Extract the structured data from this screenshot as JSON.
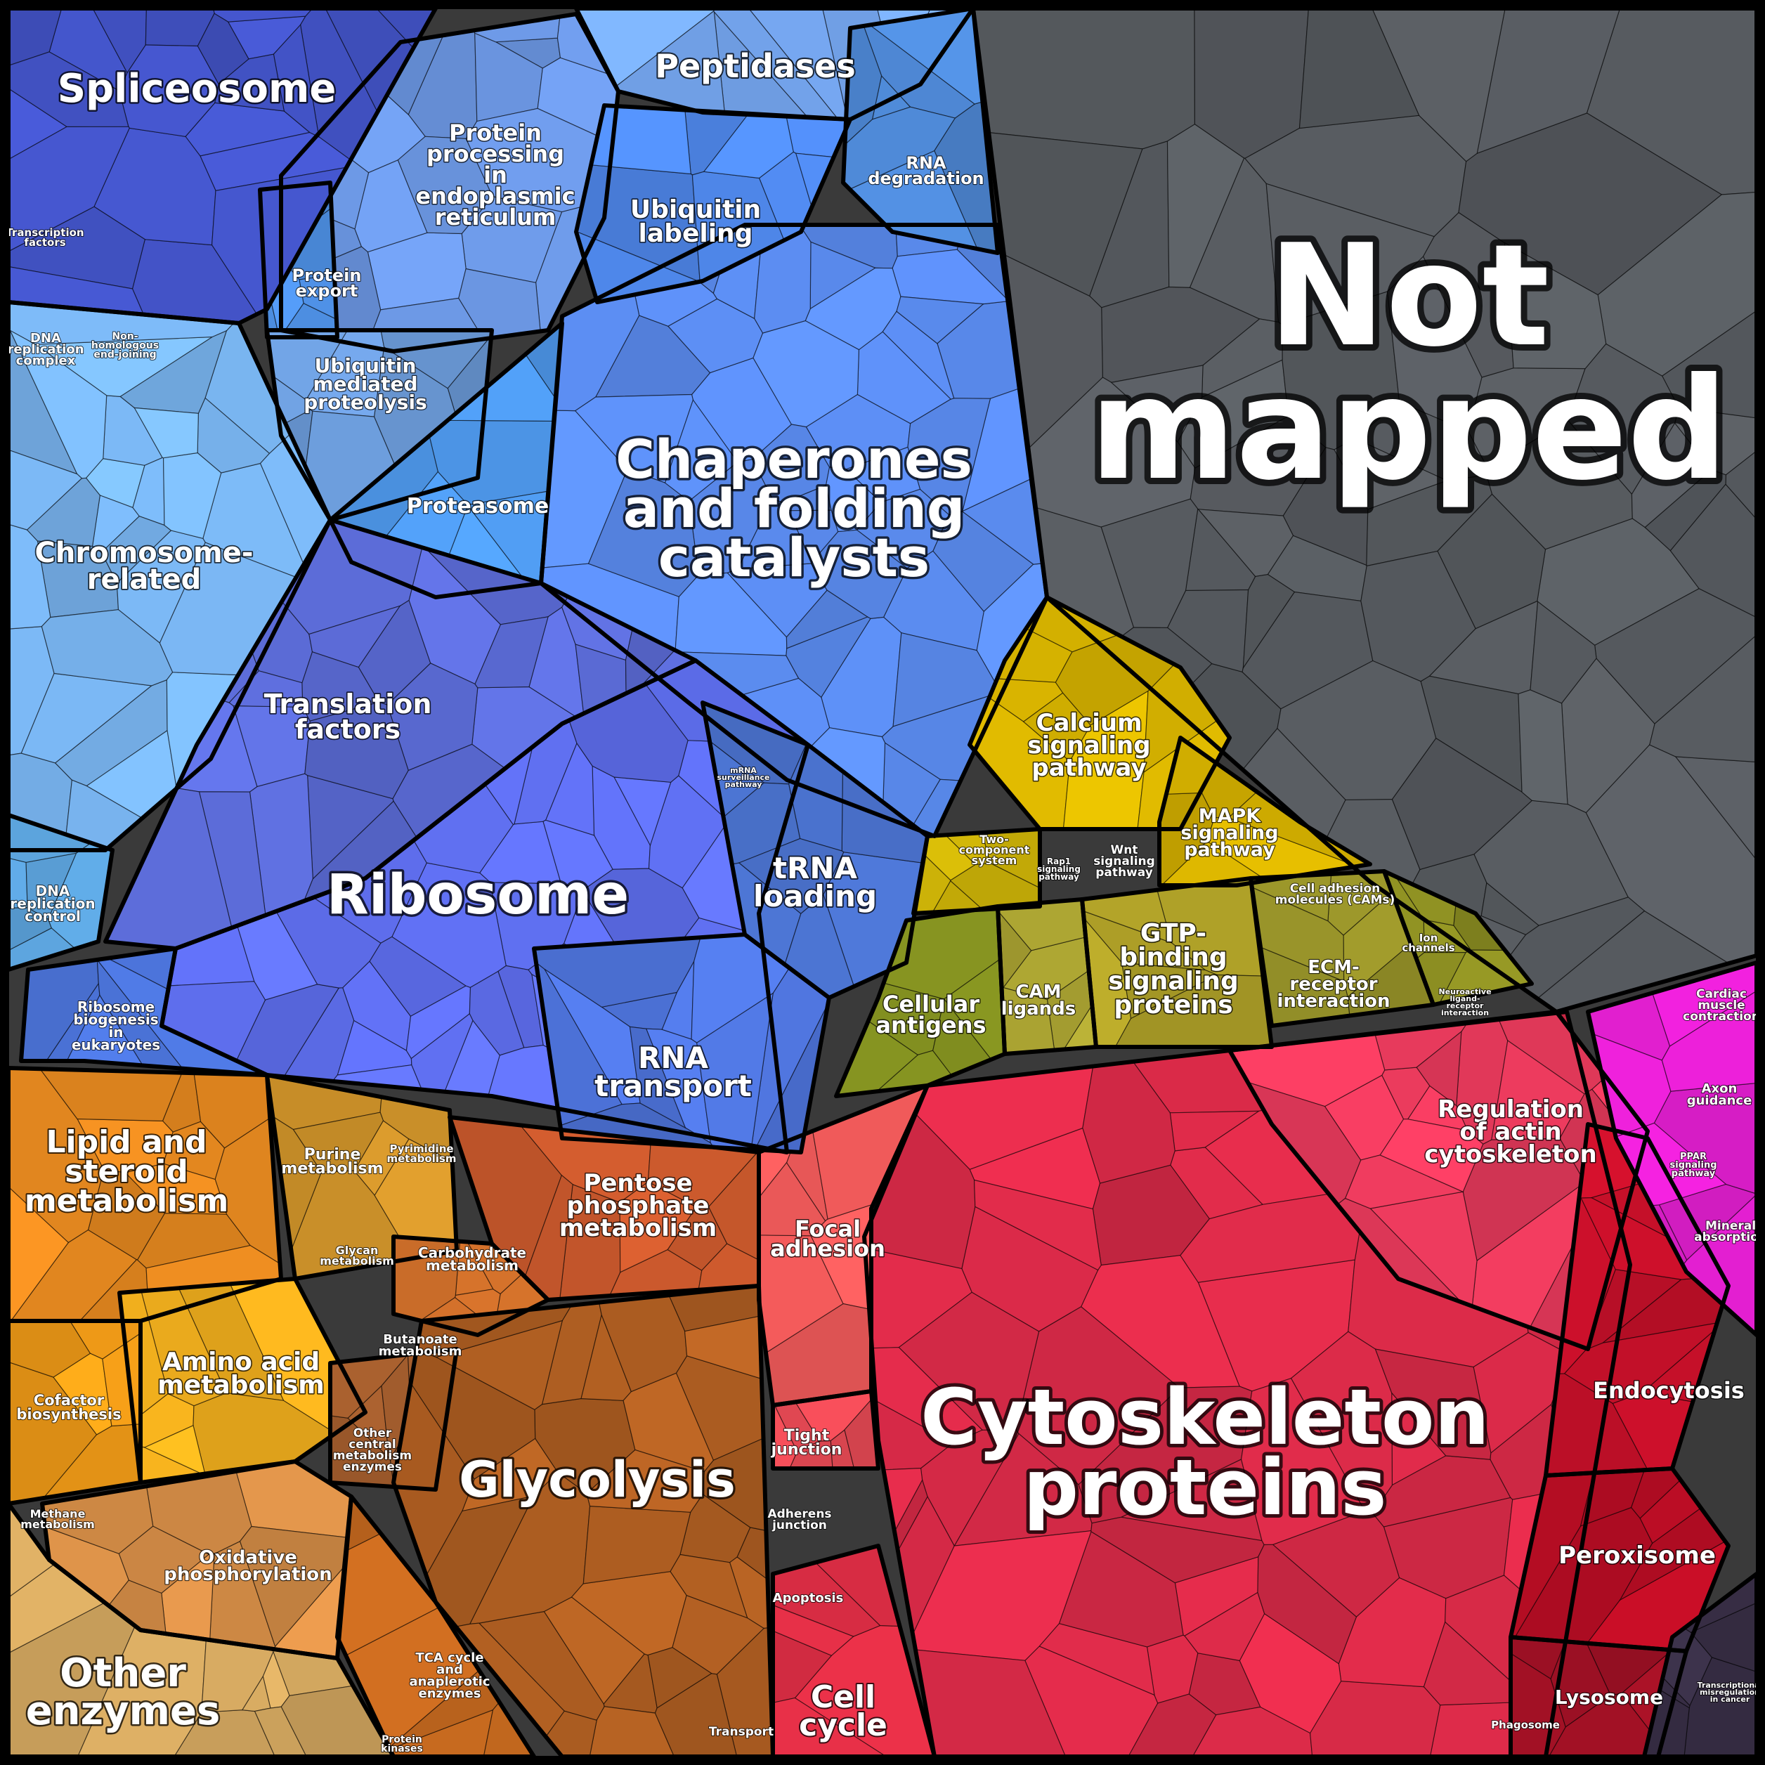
{
  "colors": {
    "not_mapped": "#575b60",
    "blue_family": "#5b86e8",
    "yellow_family": "#d4b100",
    "olive_family": "#8f9623",
    "orange_family": "#e88a1c",
    "red_family": "#dc2f4b",
    "magenta_family": "#d81fc6"
  },
  "regions": [
    {
      "id": "not-mapped",
      "label": "Not mapped",
      "color": "#575b60"
    },
    {
      "id": "cytoskeleton-proteins",
      "label": "Cytoskeleton proteins",
      "color": "#d92a48"
    },
    {
      "id": "chaperones",
      "label": "Chaperones and folding catalysts",
      "color": "#5b8cf0"
    },
    {
      "id": "ribosome",
      "label": "Ribosome",
      "color": "#5f6ff0"
    },
    {
      "id": "glycolysis",
      "label": "Glycolysis",
      "color": "#b05f22"
    },
    {
      "id": "spliceosome",
      "label": "Spliceosome",
      "color": "#4354c8"
    },
    {
      "id": "peptidases",
      "label": "Peptidases",
      "color": "#76a8f2"
    },
    {
      "id": "protein-processing-er",
      "label": "Protein processing in endoplasmic reticulum",
      "color": "#6e9ae8"
    },
    {
      "id": "ubiquitin-labeling",
      "label": "Ubiquitin labeling",
      "color": "#4f88ec"
    },
    {
      "id": "rna-degradation",
      "label": "RNA degradation",
      "color": "#4f8ad8"
    },
    {
      "id": "protein-export",
      "label": "Protein export",
      "color": "#4f92e8"
    },
    {
      "id": "ubiquitin-mediated-proteolysis",
      "label": "Ubiquitin mediated proteolysis",
      "color": "#6b9ad8"
    },
    {
      "id": "proteasome",
      "label": "Proteasome",
      "color": "#4f9aee"
    },
    {
      "id": "chromosome-related",
      "label": "Chromosome-related",
      "color": "#7ab6f2"
    },
    {
      "id": "translation-factors",
      "label": "Translation factors",
      "color": "#5c6cd8"
    },
    {
      "id": "trna-loading",
      "label": "tRNA loading",
      "color": "#4e78d8"
    },
    {
      "id": "rna-transport",
      "label": "RNA transport",
      "color": "#4e74dc"
    },
    {
      "id": "ribosome-biogenesis",
      "label": "Ribosome biogenesis in eukaryotes",
      "color": "#4b73d8"
    },
    {
      "id": "dna-replication-control",
      "label": "DNA replication control",
      "color": "#5aa0d8"
    },
    {
      "id": "calcium-signaling",
      "label": "Calcium signaling pathway",
      "color": "#d8b400"
    },
    {
      "id": "mapk-signaling",
      "label": "MAPK signaling pathway",
      "color": "#d2ae00"
    },
    {
      "id": "two-component",
      "label": "Two-component system",
      "color": "#d4b908"
    },
    {
      "id": "cellular-antigens",
      "label": "Cellular antigens",
      "color": "#8c9a22"
    },
    {
      "id": "cam-ligands",
      "label": "CAM ligands",
      "color": "#a9a232"
    },
    {
      "id": "gtp-binding",
      "label": "GTP-binding signaling proteins",
      "color": "#b4a529"
    },
    {
      "id": "ecm-receptor",
      "label": "ECM-receptor interaction",
      "color": "#9b962a"
    },
    {
      "id": "ion-channels",
      "label": "Ion channels",
      "color": "#8c8e22"
    },
    {
      "id": "lipid-steroid",
      "label": "Lipid and steroid metabolism",
      "color": "#e88a20"
    },
    {
      "id": "purine-metabolism",
      "label": "Purine metabolism",
      "color": "#d99a2c"
    },
    {
      "id": "amino-acid",
      "label": "Amino acid metabolism",
      "color": "#f5b21e"
    },
    {
      "id": "cofactor-biosynthesis",
      "label": "Cofactor biosynthesis",
      "color": "#f59e18"
    },
    {
      "id": "pentose-phosphate",
      "label": "Pentose phosphate metabolism",
      "color": "#c8582c"
    },
    {
      "id": "carbohydrate-metabolism",
      "label": "Carbohydrate metabolism",
      "color": "#c66a28"
    },
    {
      "id": "oxidative-phosphorylation",
      "label": "Oxidative phosphorylation",
      "color": "#d88f48"
    },
    {
      "id": "other-enzymes",
      "label": "Other enzymes",
      "color": "#d4a860"
    },
    {
      "id": "other-central",
      "label": "Other central metabolism enzymes",
      "color": "#9e5a2c"
    },
    {
      "id": "tca-cycle",
      "label": "TCA cycle and anaplerotic enzymes",
      "color": "#c0661e"
    },
    {
      "id": "focal-adhesion",
      "label": "Focal adhesion",
      "color": "#f05a5a"
    },
    {
      "id": "tight-junction",
      "label": "Tight junction",
      "color": "#e84a55"
    },
    {
      "id": "cell-cycle",
      "label": "Cell cycle",
      "color": "#e83048"
    },
    {
      "id": "regulation-actin",
      "label": "Regulation of actin cytoskeleton",
      "color": "#e83a5c"
    },
    {
      "id": "endocytosis",
      "label": "Endocytosis",
      "color": "#c8102a"
    },
    {
      "id": "peroxisome",
      "label": "Peroxisome",
      "color": "#b80d24"
    },
    {
      "id": "lysosome",
      "label": "Lysosome",
      "color": "#9c1024"
    },
    {
      "id": "axon-guidance",
      "label": "Axon guidance",
      "color": "#e21fd0"
    },
    {
      "id": "mineral-absorption",
      "label": "Mineral absorption",
      "color": "#d81fc0"
    },
    {
      "id": "transcriptional-misregulation",
      "label": "Transcriptional misregulation in cancer",
      "color": "#3a3048"
    }
  ],
  "labels": [
    {
      "region": "not-mapped",
      "lines": [
        "Not",
        "mapped"
      ]
    },
    {
      "region": "cytoskeleton-proteins",
      "lines": [
        "Cytoskeleton",
        "proteins"
      ]
    },
    {
      "region": "chaperones",
      "lines": [
        "Chaperones",
        "and folding",
        "catalysts"
      ]
    },
    {
      "region": "ribosome",
      "lines": [
        "Ribosome"
      ]
    },
    {
      "region": "glycolysis",
      "lines": [
        "Glycolysis"
      ]
    },
    {
      "region": "spliceosome",
      "lines": [
        "Spliceosome"
      ]
    },
    {
      "region": "peptidases",
      "lines": [
        "Peptidases"
      ]
    },
    {
      "region": "protein-processing-er",
      "lines": [
        "Protein",
        "processing",
        "in",
        "endoplasmic",
        "reticulum"
      ]
    },
    {
      "region": "ubiquitin-labeling",
      "lines": [
        "Ubiquitin",
        "labeling"
      ]
    },
    {
      "region": "rna-degradation",
      "lines": [
        "RNA",
        "degradation"
      ]
    },
    {
      "region": "protein-export",
      "lines": [
        "Protein",
        "export"
      ]
    },
    {
      "region": "ubiquitin-mediated-proteolysis",
      "lines": [
        "Ubiquitin",
        "mediated",
        "proteolysis"
      ]
    },
    {
      "region": "proteasome",
      "lines": [
        "Proteasome"
      ]
    },
    {
      "region": "chromosome-related",
      "lines": [
        "Chromosome-",
        "related"
      ]
    },
    {
      "region": "translation-factors",
      "lines": [
        "Translation",
        "factors"
      ]
    },
    {
      "region": "trna-loading",
      "lines": [
        "tRNA",
        "loading"
      ]
    },
    {
      "region": "rna-transport",
      "lines": [
        "RNA",
        "transport"
      ]
    },
    {
      "region": "ribosome-biogenesis",
      "lines": [
        "Ribosome",
        "biogenesis",
        "in",
        "eukaryotes"
      ]
    },
    {
      "region": "dna-replication-control",
      "lines": [
        "DNA",
        "replication",
        "control"
      ]
    },
    {
      "region": "dna-replication-complex",
      "lines": [
        "DNA",
        "replication",
        "complex"
      ]
    },
    {
      "region": "non-homologous",
      "lines": [
        "Non-",
        "homologous",
        "end-joining"
      ]
    },
    {
      "region": "transcription-factors",
      "lines": [
        "Transcription",
        "factors"
      ]
    },
    {
      "region": "mrna-surveillance",
      "lines": [
        "mRNA",
        "surveillance",
        "pathway"
      ]
    },
    {
      "region": "calcium-signaling",
      "lines": [
        "Calcium",
        "signaling",
        "pathway"
      ]
    },
    {
      "region": "mapk-signaling",
      "lines": [
        "MAPK",
        "signaling",
        "pathway"
      ]
    },
    {
      "region": "two-component",
      "lines": [
        "Two-",
        "component",
        "system"
      ]
    },
    {
      "region": "rap1-signaling",
      "lines": [
        "Rap1",
        "signaling",
        "pathway"
      ]
    },
    {
      "region": "wnt-signaling",
      "lines": [
        "Wnt",
        "signaling",
        "pathway"
      ]
    },
    {
      "region": "cellular-antigens",
      "lines": [
        "Cellular",
        "antigens"
      ]
    },
    {
      "region": "cam-ligands",
      "lines": [
        "CAM",
        "ligands"
      ]
    },
    {
      "region": "gtp-binding",
      "lines": [
        "GTP-",
        "binding",
        "signaling",
        "proteins"
      ]
    },
    {
      "region": "ecm-receptor",
      "lines": [
        "ECM-",
        "receptor",
        "interaction"
      ]
    },
    {
      "region": "cell-adhesion-molecules",
      "lines": [
        "Cell adhesion",
        "molecules (CAMs)"
      ]
    },
    {
      "region": "ion-channels",
      "lines": [
        "Ion",
        "channels"
      ]
    },
    {
      "region": "neuroactive",
      "lines": [
        "Neuroactive",
        "ligand-",
        "receptor",
        "interaction"
      ]
    },
    {
      "region": "lipid-steroid",
      "lines": [
        "Lipid and",
        "steroid",
        "metabolism"
      ]
    },
    {
      "region": "purine-metabolism",
      "lines": [
        "Purine",
        "metabolism"
      ]
    },
    {
      "region": "pyrimidine-metabolism",
      "lines": [
        "Pyrimidine",
        "metabolism"
      ]
    },
    {
      "region": "glycan-metabolism",
      "lines": [
        "Glycan",
        "metabolism"
      ]
    },
    {
      "region": "amino-acid",
      "lines": [
        "Amino acid",
        "metabolism"
      ]
    },
    {
      "region": "cofactor-biosynthesis",
      "lines": [
        "Cofactor",
        "biosynthesis"
      ]
    },
    {
      "region": "pentose-phosphate",
      "lines": [
        "Pentose",
        "phosphate",
        "metabolism"
      ]
    },
    {
      "region": "carbohydrate-metabolism",
      "lines": [
        "Carbohydrate",
        "metabolism"
      ]
    },
    {
      "region": "butanoate-metabolism",
      "lines": [
        "Butanoate",
        "metabolism"
      ]
    },
    {
      "region": "other-central",
      "lines": [
        "Other",
        "central",
        "metabolism",
        "enzymes"
      ]
    },
    {
      "region": "methane-metabolism",
      "lines": [
        "Methane",
        "metabolism"
      ]
    },
    {
      "region": "oxidative-phosphorylation",
      "lines": [
        "Oxidative",
        "phosphorylation"
      ]
    },
    {
      "region": "other-enzymes",
      "lines": [
        "Other",
        "enzymes"
      ]
    },
    {
      "region": "tca-cycle",
      "lines": [
        "TCA cycle",
        "and",
        "anaplerotic",
        "enzymes"
      ]
    },
    {
      "region": "transport",
      "lines": [
        "Transport"
      ]
    },
    {
      "region": "protein-kinases",
      "lines": [
        "Protein",
        "kinases"
      ]
    },
    {
      "region": "focal-adhesion",
      "lines": [
        "Focal",
        "adhesion"
      ]
    },
    {
      "region": "tight-junction",
      "lines": [
        "Tight",
        "junction"
      ]
    },
    {
      "region": "adherens-junction",
      "lines": [
        "Adherens",
        "junction"
      ]
    },
    {
      "region": "apoptosis",
      "lines": [
        "Apoptosis"
      ]
    },
    {
      "region": "cell-cycle",
      "lines": [
        "Cell",
        "cycle"
      ]
    },
    {
      "region": "regulation-actin",
      "lines": [
        "Regulation",
        "of actin",
        "cytoskeleton"
      ]
    },
    {
      "region": "endocytosis",
      "lines": [
        "Endocytosis"
      ]
    },
    {
      "region": "peroxisome",
      "lines": [
        "Peroxisome"
      ]
    },
    {
      "region": "lysosome",
      "lines": [
        "Lysosome"
      ]
    },
    {
      "region": "phagosome",
      "lines": [
        "Phagosome"
      ]
    },
    {
      "region": "cardiac-muscle",
      "lines": [
        "Cardiac",
        "muscle",
        "contraction"
      ]
    },
    {
      "region": "axon-guidance",
      "lines": [
        "Axon",
        "guidance"
      ]
    },
    {
      "region": "ppar-signaling",
      "lines": [
        "PPAR",
        "signaling",
        "pathway"
      ]
    },
    {
      "region": "mineral-absorption",
      "lines": [
        "Mineral",
        "absorption"
      ]
    },
    {
      "region": "transcriptional-misregulation",
      "lines": [
        "Transcriptional",
        "misregulation",
        "in cancer"
      ]
    }
  ]
}
